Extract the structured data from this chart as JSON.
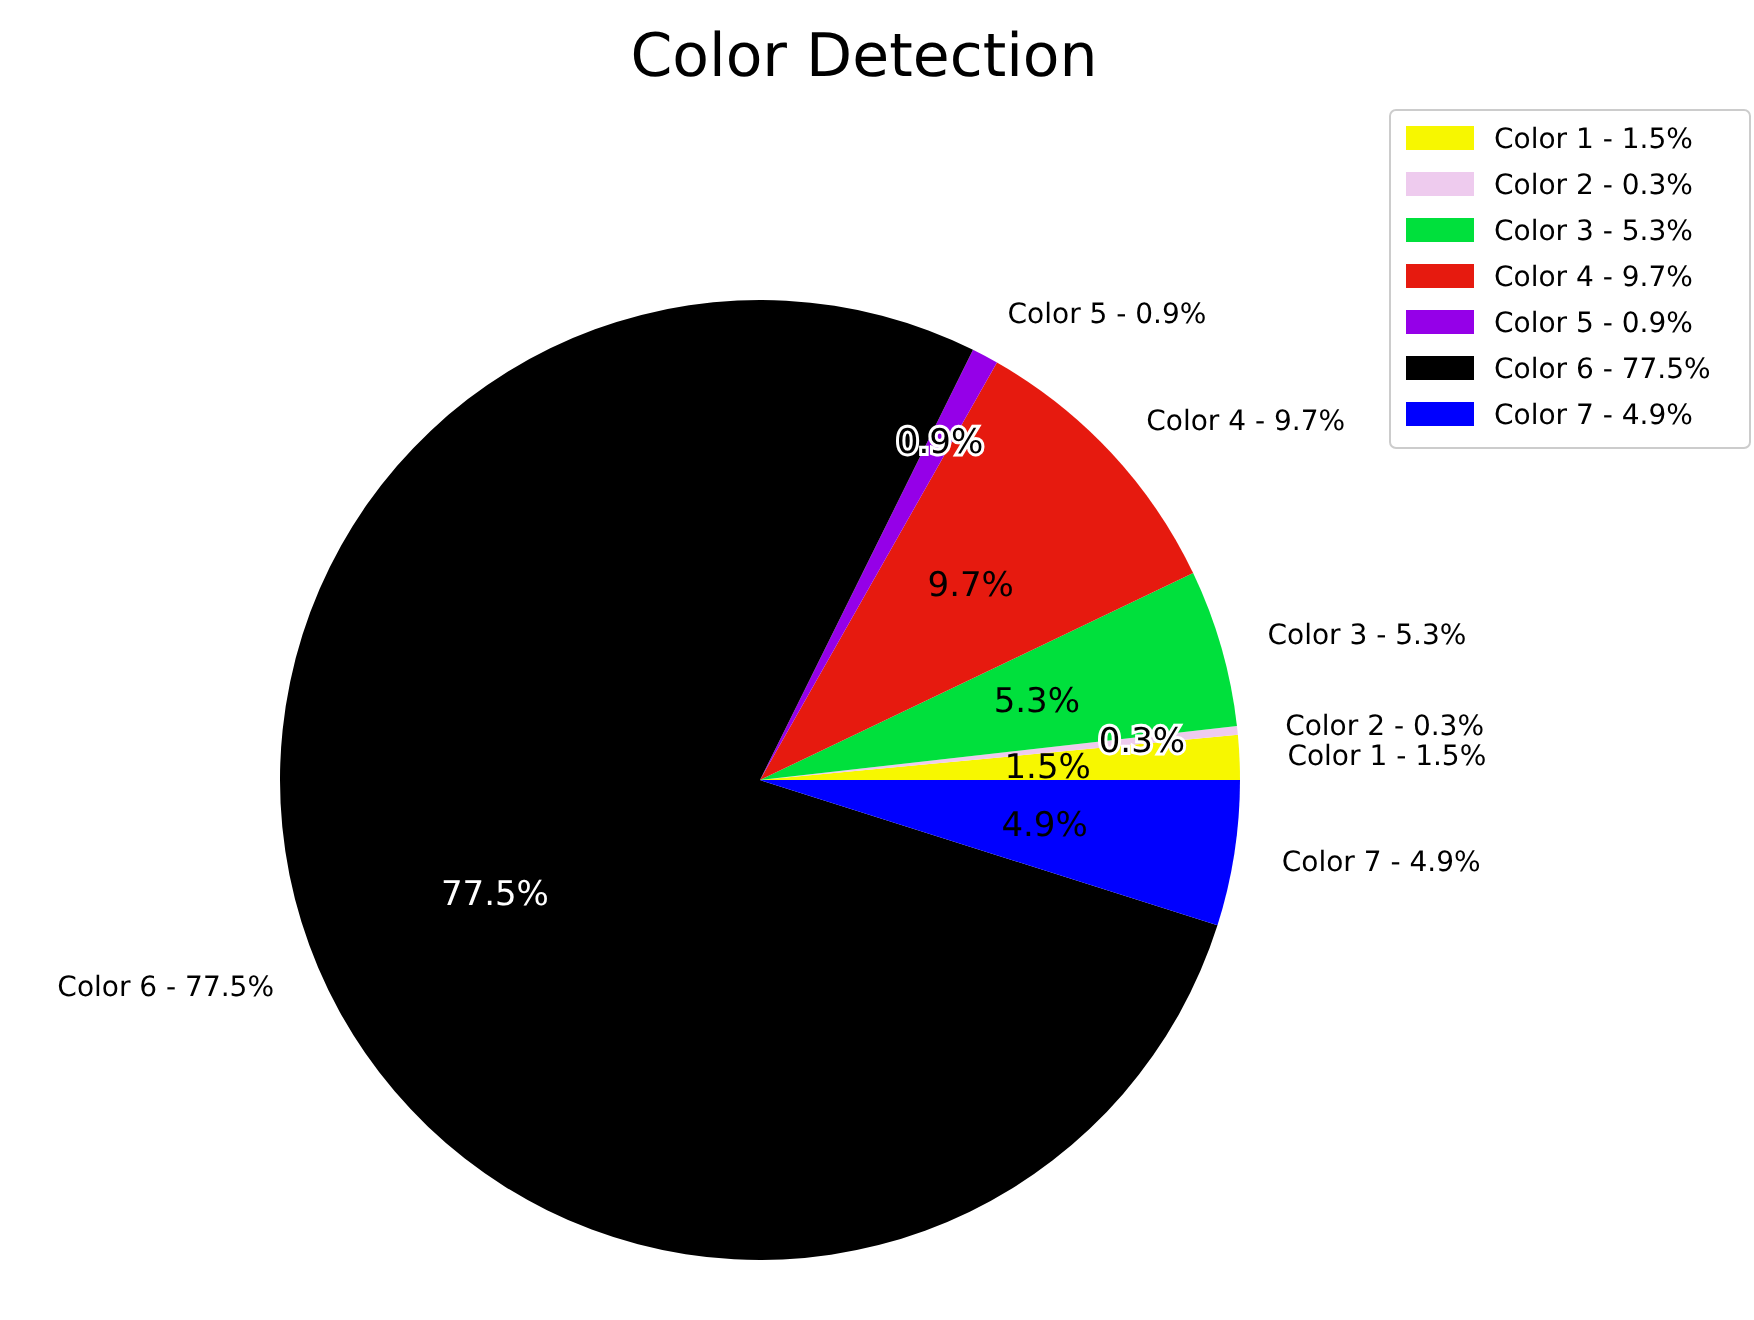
{
  "chart_data": {
    "type": "pie",
    "title": "Color Detection",
    "categories": [
      "Color 1 - 1.5%",
      "Color 2 - 0.3%",
      "Color 3 - 5.3%",
      "Color 4 - 9.7%",
      "Color 5 - 0.9%",
      "Color 6 - 77.5%",
      "Color 7 - 4.9%"
    ],
    "values": [
      1.5,
      0.3,
      5.3,
      9.7,
      0.9,
      77.5,
      4.9
    ],
    "colors": [
      "#f7f700",
      "#eecbee",
      "#00e03c",
      "#e61a0f",
      "#9500e8",
      "#000000",
      "#0000ff"
    ],
    "value_labels": [
      "1.5%",
      "0.3%",
      "5.3%",
      "9.7%",
      "0.9%",
      "77.5%",
      "4.9%"
    ],
    "legend": "top right"
  }
}
